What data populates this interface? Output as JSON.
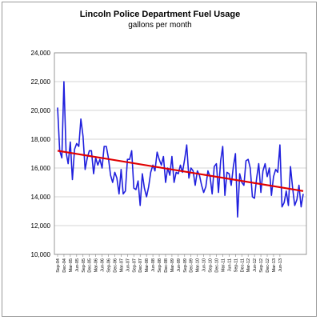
{
  "chart_data": {
    "type": "line",
    "title": "Lincoln  Police Department Fuel Usage",
    "subtitle": "gallons per month",
    "xlabel": "",
    "ylabel": "",
    "ylim": [
      10000,
      24000
    ],
    "yticks": [
      10000,
      12000,
      14000,
      16000,
      18000,
      20000,
      22000,
      24000
    ],
    "ytick_labels": [
      "10,000",
      "12,000",
      "14,000",
      "16,000",
      "18,000",
      "20,000",
      "22,000",
      "24,000"
    ],
    "grid": "horizontal",
    "legend": "none",
    "xtick_labels": [
      "Sep-04",
      "Dec-04",
      "Mar-05",
      "Jun-05",
      "Sep-05",
      "Dec-05",
      "Mar-06",
      "Jun-06",
      "Sep-06",
      "Dec-06",
      "Mar-07",
      "Jun-07",
      "Sep-07",
      "Dec-07",
      "Mar-08",
      "Jun-08",
      "Sep-08",
      "Dec-08",
      "Mar-09",
      "Jun-09",
      "Sep-09",
      "Dec-09",
      "Mar-10",
      "Jun-10",
      "Sep-10",
      "Dec-10",
      "Mar-11",
      "Jun-11",
      "Sep-11",
      "Dec-11",
      "Mar-12",
      "Jun-12",
      "Sep-12",
      "Dec-12",
      "Mar-13",
      "Jun-13"
    ],
    "series": [
      {
        "color": "#1f1fdd",
        "values": [
          20200,
          17200,
          16700,
          22000,
          17100,
          16300,
          17800,
          15200,
          17300,
          17700,
          17500,
          19400,
          18200,
          15900,
          16700,
          17200,
          17200,
          15600,
          16700,
          16200,
          16600,
          16000,
          17500,
          17500,
          16700,
          15500,
          15000,
          15700,
          15300,
          14200,
          15900,
          14200,
          14400,
          16600,
          16600,
          17200,
          14600,
          14500,
          15100,
          13400,
          15600,
          14600,
          14000,
          14700,
          15700,
          16200,
          15800,
          17100,
          16600,
          16200,
          16800,
          15000,
          16000,
          15500,
          16800,
          15000,
          15700,
          15600,
          16200,
          15700,
          16600,
          17600,
          15300,
          16000,
          15800,
          14800,
          15800,
          15500,
          14800,
          14300,
          14700,
          15800,
          15400,
          14200,
          16100,
          16300,
          14300,
          16500,
          17500,
          14100,
          15700,
          15600,
          14800,
          16100,
          17000,
          12600,
          15600,
          15000,
          14800,
          16500,
          16600,
          16000,
          14000,
          13900,
          15300,
          16300,
          14300,
          15800,
          16300,
          15400,
          16000,
          14100,
          15400,
          15900,
          15700,
          17600,
          13300,
          13600,
          14400,
          13400,
          16100,
          14600,
          13400,
          13800,
          14800,
          13300,
          14200
        ]
      },
      {
        "color": "#e00000",
        "values": [
          17200,
          14400
        ]
      }
    ]
  }
}
